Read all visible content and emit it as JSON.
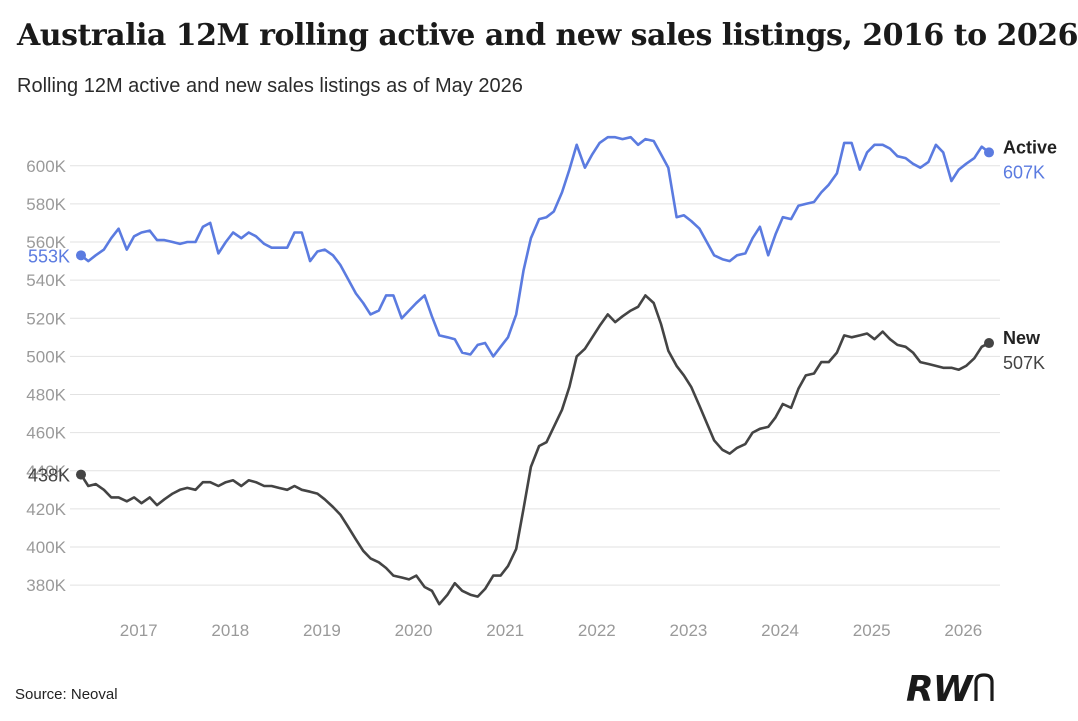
{
  "title": "Australia 12M rolling active and new sales listings, 2016 to 2026",
  "subtitle": "Rolling 12M active and new sales listings as of May 2026",
  "source": "Source: Neoval",
  "logo_text": "RWn",
  "colors": {
    "active": "#5b7be0",
    "new": "#444444",
    "grid": "#e2e2e2",
    "tick": "#9a9a9a"
  },
  "chart_data": {
    "type": "line",
    "title": "Australia 12M rolling active and new sales listings, 2016 to 2026",
    "xlabel": "",
    "ylabel": "",
    "xlim": [
      2016.3,
      2026.45
    ],
    "ylim": [
      368000,
      624000
    ],
    "x_ticks": [
      2017,
      2018,
      2019,
      2020,
      2021,
      2022,
      2023,
      2024,
      2025,
      2026
    ],
    "x_tick_labels": [
      "2017",
      "2018",
      "2019",
      "2020",
      "2021",
      "2022",
      "2023",
      "2024",
      "2025",
      "2026"
    ],
    "y_ticks": [
      380000,
      400000,
      420000,
      440000,
      460000,
      480000,
      500000,
      520000,
      540000,
      560000,
      580000,
      600000
    ],
    "y_tick_labels": [
      "380K",
      "400K",
      "420K",
      "440K",
      "460K",
      "480K",
      "500K",
      "520K",
      "540K",
      "560K",
      "580K",
      "600K"
    ],
    "grid": true,
    "series": [
      {
        "name": "Active",
        "start_label": "553K",
        "end_label": "607K",
        "points": [
          [
            2016.42,
            553000
          ],
          [
            2016.5,
            550000
          ],
          [
            2016.58,
            553000
          ],
          [
            2016.67,
            556000
          ],
          [
            2016.75,
            562000
          ],
          [
            2016.83,
            567000
          ],
          [
            2016.92,
            556000
          ],
          [
            2017.0,
            563000
          ],
          [
            2017.08,
            565000
          ],
          [
            2017.17,
            566000
          ],
          [
            2017.25,
            561000
          ],
          [
            2017.33,
            561000
          ],
          [
            2017.42,
            560000
          ],
          [
            2017.5,
            559000
          ],
          [
            2017.58,
            560000
          ],
          [
            2017.67,
            560000
          ],
          [
            2017.75,
            568000
          ],
          [
            2017.83,
            570000
          ],
          [
            2017.92,
            554000
          ],
          [
            2018.0,
            560000
          ],
          [
            2018.08,
            565000
          ],
          [
            2018.17,
            562000
          ],
          [
            2018.25,
            565000
          ],
          [
            2018.33,
            563000
          ],
          [
            2018.42,
            559000
          ],
          [
            2018.5,
            557000
          ],
          [
            2018.58,
            557000
          ],
          [
            2018.67,
            557000
          ],
          [
            2018.75,
            565000
          ],
          [
            2018.83,
            565000
          ],
          [
            2018.92,
            550000
          ],
          [
            2019.0,
            555000
          ],
          [
            2019.08,
            556000
          ],
          [
            2019.17,
            553000
          ],
          [
            2019.25,
            548000
          ],
          [
            2019.33,
            541000
          ],
          [
            2019.42,
            533000
          ],
          [
            2019.5,
            528000
          ],
          [
            2019.58,
            522000
          ],
          [
            2019.67,
            524000
          ],
          [
            2019.75,
            532000
          ],
          [
            2019.83,
            532000
          ],
          [
            2019.92,
            520000
          ],
          [
            2020.0,
            524000
          ],
          [
            2020.08,
            528000
          ],
          [
            2020.17,
            532000
          ],
          [
            2020.25,
            521000
          ],
          [
            2020.33,
            511000
          ],
          [
            2020.42,
            510000
          ],
          [
            2020.5,
            509000
          ],
          [
            2020.58,
            502000
          ],
          [
            2020.67,
            501000
          ],
          [
            2020.75,
            506000
          ],
          [
            2020.83,
            507000
          ],
          [
            2020.92,
            500000
          ],
          [
            2021.0,
            505000
          ],
          [
            2021.08,
            510000
          ],
          [
            2021.17,
            522000
          ],
          [
            2021.25,
            545000
          ],
          [
            2021.33,
            562000
          ],
          [
            2021.42,
            572000
          ],
          [
            2021.5,
            573000
          ],
          [
            2021.58,
            576000
          ],
          [
            2021.67,
            586000
          ],
          [
            2021.75,
            598000
          ],
          [
            2021.83,
            611000
          ],
          [
            2021.92,
            599000
          ],
          [
            2022.0,
            606000
          ],
          [
            2022.08,
            612000
          ],
          [
            2022.17,
            615000
          ],
          [
            2022.25,
            615000
          ],
          [
            2022.33,
            614000
          ],
          [
            2022.42,
            615000
          ],
          [
            2022.5,
            611000
          ],
          [
            2022.58,
            614000
          ],
          [
            2022.67,
            613000
          ],
          [
            2022.75,
            606000
          ],
          [
            2022.83,
            599000
          ],
          [
            2022.92,
            573000
          ],
          [
            2023.0,
            574000
          ],
          [
            2023.08,
            571000
          ],
          [
            2023.17,
            567000
          ],
          [
            2023.25,
            560000
          ],
          [
            2023.33,
            553000
          ],
          [
            2023.42,
            551000
          ],
          [
            2023.5,
            550000
          ],
          [
            2023.58,
            553000
          ],
          [
            2023.67,
            554000
          ],
          [
            2023.75,
            562000
          ],
          [
            2023.83,
            568000
          ],
          [
            2023.92,
            553000
          ],
          [
            2024.0,
            564000
          ],
          [
            2024.08,
            573000
          ],
          [
            2024.17,
            572000
          ],
          [
            2024.25,
            579000
          ],
          [
            2024.33,
            580000
          ],
          [
            2024.42,
            581000
          ],
          [
            2024.5,
            586000
          ],
          [
            2024.58,
            590000
          ],
          [
            2024.67,
            596000
          ],
          [
            2024.75,
            612000
          ],
          [
            2024.83,
            612000
          ],
          [
            2024.92,
            598000
          ],
          [
            2025.0,
            607000
          ],
          [
            2025.08,
            611000
          ],
          [
            2025.17,
            611000
          ],
          [
            2025.25,
            609000
          ],
          [
            2025.33,
            605000
          ],
          [
            2025.42,
            604000
          ],
          [
            2025.5,
            601000
          ],
          [
            2025.58,
            599000
          ],
          [
            2025.67,
            602000
          ],
          [
            2025.75,
            611000
          ],
          [
            2025.83,
            607000
          ],
          [
            2025.92,
            592000
          ],
          [
            2026.0,
            598000
          ],
          [
            2026.08,
            601000
          ],
          [
            2026.17,
            604000
          ],
          [
            2026.25,
            610000
          ],
          [
            2026.33,
            607000
          ]
        ]
      },
      {
        "name": "New",
        "start_label": "438K",
        "end_label": "507K",
        "points": [
          [
            2016.42,
            438000
          ],
          [
            2016.5,
            432000
          ],
          [
            2016.58,
            433000
          ],
          [
            2016.67,
            430000
          ],
          [
            2016.75,
            426000
          ],
          [
            2016.83,
            426000
          ],
          [
            2016.92,
            424000
          ],
          [
            2017.0,
            426000
          ],
          [
            2017.08,
            423000
          ],
          [
            2017.17,
            426000
          ],
          [
            2017.25,
            422000
          ],
          [
            2017.33,
            425000
          ],
          [
            2017.42,
            428000
          ],
          [
            2017.5,
            430000
          ],
          [
            2017.58,
            431000
          ],
          [
            2017.67,
            430000
          ],
          [
            2017.75,
            434000
          ],
          [
            2017.83,
            434000
          ],
          [
            2017.92,
            432000
          ],
          [
            2018.0,
            434000
          ],
          [
            2018.08,
            435000
          ],
          [
            2018.17,
            432000
          ],
          [
            2018.25,
            435000
          ],
          [
            2018.33,
            434000
          ],
          [
            2018.42,
            432000
          ],
          [
            2018.5,
            432000
          ],
          [
            2018.58,
            431000
          ],
          [
            2018.67,
            430000
          ],
          [
            2018.75,
            432000
          ],
          [
            2018.83,
            430000
          ],
          [
            2018.92,
            429000
          ],
          [
            2019.0,
            428000
          ],
          [
            2019.08,
            425000
          ],
          [
            2019.17,
            421000
          ],
          [
            2019.25,
            417000
          ],
          [
            2019.33,
            411000
          ],
          [
            2019.42,
            404000
          ],
          [
            2019.5,
            398000
          ],
          [
            2019.58,
            394000
          ],
          [
            2019.67,
            392000
          ],
          [
            2019.75,
            389000
          ],
          [
            2019.83,
            385000
          ],
          [
            2019.92,
            384000
          ],
          [
            2020.0,
            383000
          ],
          [
            2020.08,
            385000
          ],
          [
            2020.17,
            379000
          ],
          [
            2020.25,
            377000
          ],
          [
            2020.33,
            370000
          ],
          [
            2020.42,
            375000
          ],
          [
            2020.5,
            381000
          ],
          [
            2020.58,
            377000
          ],
          [
            2020.67,
            375000
          ],
          [
            2020.75,
            374000
          ],
          [
            2020.83,
            378000
          ],
          [
            2020.92,
            385000
          ],
          [
            2021.0,
            385000
          ],
          [
            2021.08,
            390000
          ],
          [
            2021.17,
            399000
          ],
          [
            2021.25,
            420000
          ],
          [
            2021.33,
            442000
          ],
          [
            2021.42,
            453000
          ],
          [
            2021.5,
            455000
          ],
          [
            2021.58,
            463000
          ],
          [
            2021.67,
            472000
          ],
          [
            2021.75,
            484000
          ],
          [
            2021.83,
            500000
          ],
          [
            2021.92,
            504000
          ],
          [
            2022.0,
            510000
          ],
          [
            2022.08,
            516000
          ],
          [
            2022.17,
            522000
          ],
          [
            2022.25,
            518000
          ],
          [
            2022.33,
            521000
          ],
          [
            2022.42,
            524000
          ],
          [
            2022.5,
            526000
          ],
          [
            2022.58,
            532000
          ],
          [
            2022.67,
            528000
          ],
          [
            2022.75,
            517000
          ],
          [
            2022.83,
            503000
          ],
          [
            2022.92,
            495000
          ],
          [
            2023.0,
            490000
          ],
          [
            2023.08,
            484000
          ],
          [
            2023.17,
            474000
          ],
          [
            2023.25,
            465000
          ],
          [
            2023.33,
            456000
          ],
          [
            2023.42,
            451000
          ],
          [
            2023.5,
            449000
          ],
          [
            2023.58,
            452000
          ],
          [
            2023.67,
            454000
          ],
          [
            2023.75,
            460000
          ],
          [
            2023.83,
            462000
          ],
          [
            2023.92,
            463000
          ],
          [
            2024.0,
            468000
          ],
          [
            2024.08,
            475000
          ],
          [
            2024.17,
            473000
          ],
          [
            2024.25,
            483000
          ],
          [
            2024.33,
            490000
          ],
          [
            2024.42,
            491000
          ],
          [
            2024.5,
            497000
          ],
          [
            2024.58,
            497000
          ],
          [
            2024.67,
            502000
          ],
          [
            2024.75,
            511000
          ],
          [
            2024.83,
            510000
          ],
          [
            2024.92,
            511000
          ],
          [
            2025.0,
            512000
          ],
          [
            2025.08,
            509000
          ],
          [
            2025.17,
            513000
          ],
          [
            2025.25,
            509000
          ],
          [
            2025.33,
            506000
          ],
          [
            2025.42,
            505000
          ],
          [
            2025.5,
            502000
          ],
          [
            2025.58,
            497000
          ],
          [
            2025.67,
            496000
          ],
          [
            2025.75,
            495000
          ],
          [
            2025.83,
            494000
          ],
          [
            2025.92,
            494000
          ],
          [
            2026.0,
            493000
          ],
          [
            2026.08,
            495000
          ],
          [
            2026.17,
            499000
          ],
          [
            2026.25,
            505000
          ],
          [
            2026.33,
            507000
          ]
        ]
      }
    ]
  }
}
